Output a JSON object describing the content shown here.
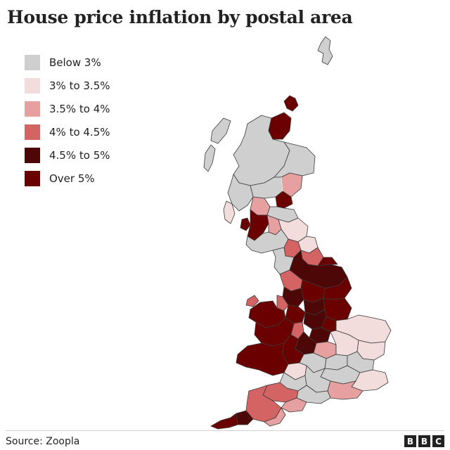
{
  "title": "House price inflation by postal area",
  "legend": [
    {
      "label": "Below 3%",
      "color": "#cfcfcf"
    },
    {
      "label": "3% to 3.5%",
      "color": "#f2dcdc"
    },
    {
      "label": "3.5% to 4%",
      "color": "#e6a0a0"
    },
    {
      "label": "4% to 4.5%",
      "color": "#d46464"
    },
    {
      "label": "4.5% to 5%",
      "color": "#4e0707"
    },
    {
      "label": "Over 5%",
      "color": "#6b0000"
    }
  ],
  "map": {
    "region": "Great Britain postal areas"
  },
  "source": "Source: Zoopla",
  "logo": [
    "B",
    "B",
    "C"
  ]
}
